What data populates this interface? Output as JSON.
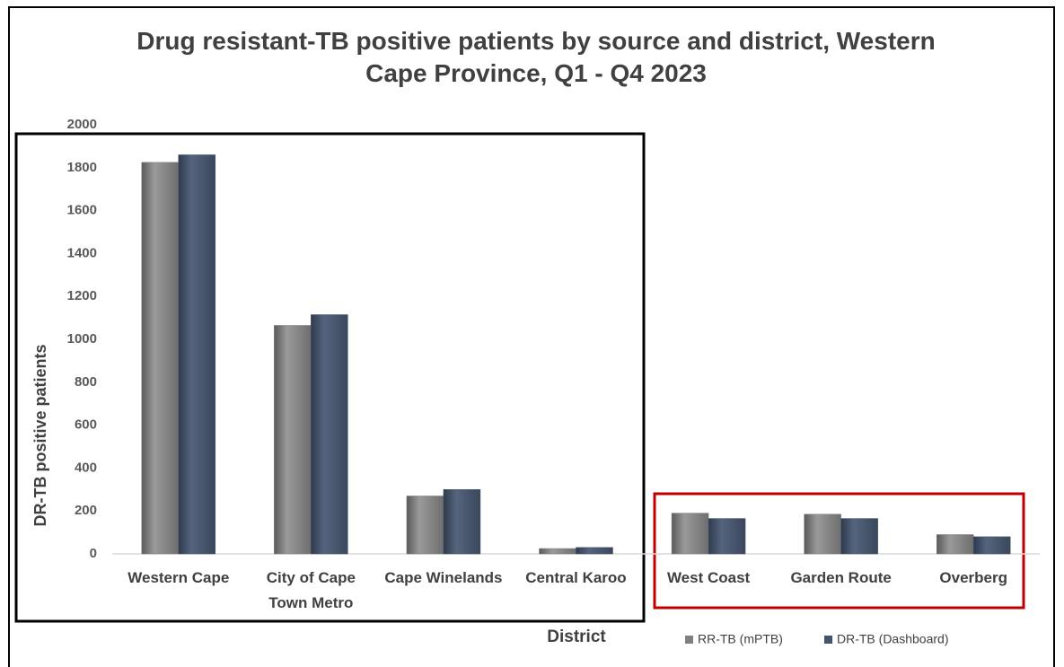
{
  "chart_data": {
    "type": "bar",
    "title": "Drug resistant-TB positive patients by source and district, Western Cape Province, Q1 - Q4 2023",
    "x_label": "District",
    "y_label": "DR-TB positive patients",
    "categories": [
      "Western Cape",
      "City of Cape Town Metro",
      "Cape Winelands",
      "Central Karoo",
      "West Coast",
      "Garden Route",
      "Overberg"
    ],
    "series": [
      {
        "name": "RR-TB (mPTB)",
        "color": "#7f7f7f",
        "values": [
          1825,
          1065,
          270,
          25,
          190,
          185,
          90
        ]
      },
      {
        "name": "DR-TB (Dashboard)",
        "color": "#44546a",
        "values": [
          1860,
          1115,
          300,
          30,
          165,
          165,
          80
        ]
      }
    ],
    "ylim": [
      0,
      2000
    ],
    "yticks": [
      0,
      200,
      400,
      600,
      800,
      1000,
      1200,
      1400,
      1600,
      1800,
      2000
    ],
    "grid": false,
    "legend": "bottom"
  }
}
